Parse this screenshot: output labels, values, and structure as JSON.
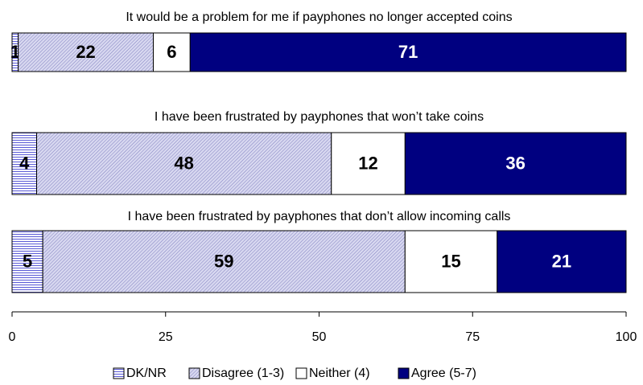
{
  "chart_data": {
    "type": "stacked_barh",
    "categories": [
      "It would be a problem for me if payphones no longer accepted coins",
      "I have been frustrated by payphones that won’t take coins",
      "I have been frustrated by payphones that don’t allow incoming calls"
    ],
    "series": [
      {
        "name": "DK/NR",
        "color": "#9999ff",
        "pattern": "horizontal",
        "values": [
          1,
          4,
          5
        ]
      },
      {
        "name": "Disagree (1-3)",
        "color": "#9999cc",
        "pattern": "diagonal",
        "values": [
          22,
          48,
          59
        ]
      },
      {
        "name": "Neither (4)",
        "color": "#ffffff",
        "pattern": "none",
        "values": [
          6,
          12,
          15
        ]
      },
      {
        "name": "Agree (5-7)",
        "color": "#000080",
        "pattern": "none",
        "values": [
          71,
          36,
          21
        ]
      }
    ],
    "xlim": [
      0,
      100
    ],
    "xticks": [
      0,
      25,
      50,
      75,
      100
    ],
    "legend": "bottom"
  }
}
